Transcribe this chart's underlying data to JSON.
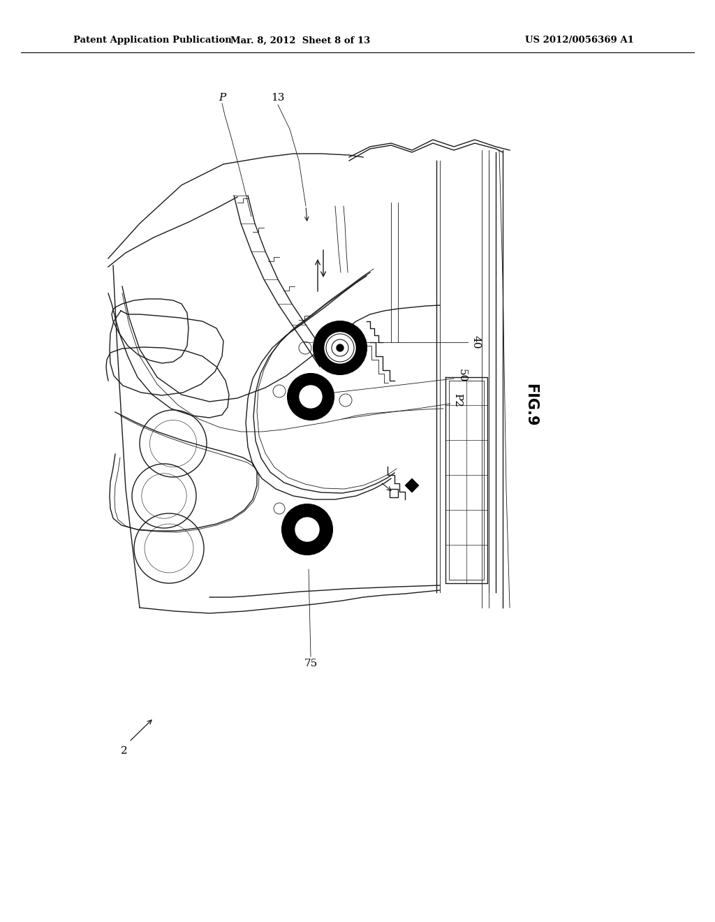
{
  "header_left": "Patent Application Publication",
  "header_mid": "Mar. 8, 2012  Sheet 8 of 13",
  "header_right": "US 2012/0056369 A1",
  "fig_label": "FIG.9",
  "bg_color": "#ffffff",
  "line_color": "#1a1a1a",
  "lw_thick": 1.5,
  "lw_med": 1.0,
  "lw_thin": 0.6
}
